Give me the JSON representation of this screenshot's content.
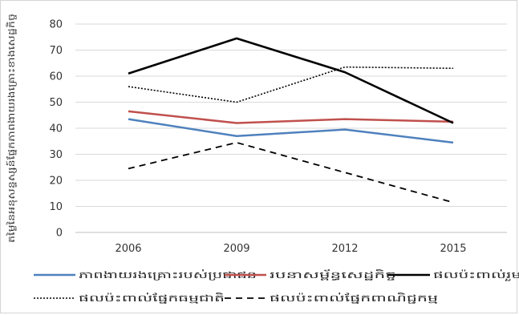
{
  "chart_data": {
    "type": "line",
    "title": "",
    "xlabel": "",
    "ylabel": "តម្លៃនៃអនុសន្ទស្សន៍ផ្នែកភាពងាយរងគ្រោះខាងសេដ្ឋកិច្ច",
    "x": [
      "2006",
      "2009",
      "2012",
      "2015"
    ],
    "ylim": [
      0,
      80
    ],
    "yticks": [
      0,
      10,
      20,
      30,
      40,
      50,
      60,
      70,
      80
    ],
    "grid": true,
    "legend": "bottom",
    "series": [
      {
        "name": "ភាពងាយរងគ្រោះរបស់ប្រជាជន",
        "values": [
          43.5,
          37,
          39.5,
          34.5
        ],
        "color": "#4f81bd",
        "style": "solid"
      },
      {
        "name": "របនាសម្ព័ន្ធសេដ្ឋកិច្ច",
        "values": [
          46.5,
          42,
          43.5,
          42.5
        ],
        "color": "#c0504d",
        "style": "solid"
      },
      {
        "name": "ផលប៉ះពាល់រួម",
        "values": [
          61,
          74.5,
          61.5,
          42
        ],
        "color": "#000000",
        "style": "solid-bold"
      },
      {
        "name": "ផលប៉ះពាល់ផ្នែកធម្មជាតិ",
        "values": [
          56,
          50,
          63.5,
          63
        ],
        "color": "#000000",
        "style": "dotted"
      },
      {
        "name": "ផលប៉ះពាល់ផ្នែកពាណិជ្ជកម្ម",
        "values": [
          24.5,
          34.5,
          23,
          11.5
        ],
        "color": "#000000",
        "style": "dashed"
      }
    ]
  }
}
